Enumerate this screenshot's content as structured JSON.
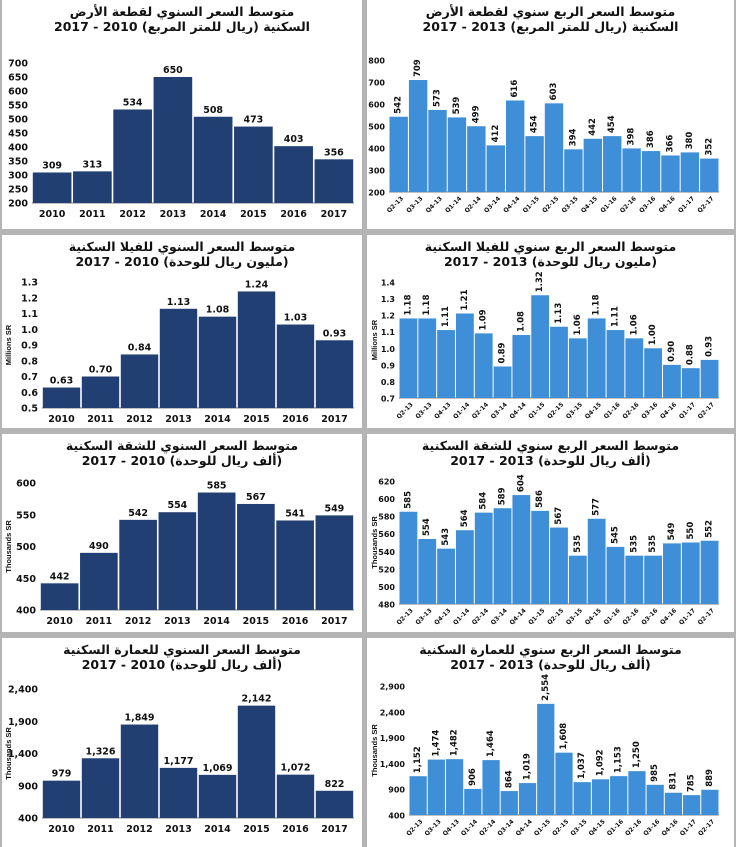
{
  "colors": {
    "annual": "#213f73",
    "quarterly": "#3e8fd8",
    "separator": "#b4b4b4"
  },
  "chart_data": [
    {
      "id": "land-annual",
      "type": "bar",
      "title": "متوسط السعر السنوي لقطعة الأرض",
      "subtitle": "السكنية (ريال للمتر المربع) 2010 - 2017",
      "ylabel": "",
      "categories": [
        "2010",
        "2011",
        "2012",
        "2013",
        "2014",
        "2015",
        "2016",
        "2017"
      ],
      "values": [
        309,
        313,
        534,
        650,
        508,
        473,
        403,
        356
      ],
      "value_labels": [
        "309",
        "313",
        "534",
        "650",
        "508",
        "473",
        "403",
        "356"
      ],
      "ylim": [
        200,
        700
      ],
      "yticks": [
        200,
        250,
        300,
        350,
        400,
        450,
        500,
        550,
        600,
        650,
        700
      ],
      "ytick_labels": [
        "200",
        "250",
        "300",
        "350",
        "400",
        "450",
        "500",
        "550",
        "600",
        "650",
        "700"
      ]
    },
    {
      "id": "land-quarterly",
      "type": "bar",
      "title": "متوسط السعر الربع سنوي لقطعة الأرض",
      "subtitle": "السكنية (ريال للمتر المربع) 2013 - 2017",
      "ylabel": "",
      "categories": [
        "Q2-13",
        "Q3-13",
        "Q4-13",
        "Q1-14",
        "Q2-14",
        "Q3-14",
        "Q4-14",
        "Q1-15",
        "Q2-15",
        "Q3-15",
        "Q4-15",
        "Q1-16",
        "Q2-16",
        "Q3-16",
        "Q4-16",
        "Q1-17",
        "Q2-17"
      ],
      "values": [
        542,
        709,
        573,
        539,
        499,
        412,
        616,
        454,
        603,
        394,
        442,
        454,
        398,
        386,
        366,
        380,
        352
      ],
      "value_labels": [
        "542",
        "709",
        "573",
        "539",
        "499",
        "412",
        "616",
        "454",
        "603",
        "394",
        "442",
        "454",
        "398",
        "386",
        "366",
        "380",
        "352"
      ],
      "ylim": [
        200,
        800
      ],
      "yticks": [
        200,
        300,
        400,
        500,
        600,
        700,
        800
      ],
      "ytick_labels": [
        "200",
        "300",
        "400",
        "500",
        "600",
        "700",
        "800"
      ]
    },
    {
      "id": "villa-annual",
      "type": "bar",
      "title": "متوسط السعر السنوي للفيلا السكنية",
      "subtitle": "(مليون ريال للوحدة) 2010 - 2017",
      "ylabel": "Millions SR",
      "categories": [
        "2010",
        "2011",
        "2012",
        "2013",
        "2014",
        "2015",
        "2016",
        "2017"
      ],
      "values": [
        0.63,
        0.7,
        0.84,
        1.13,
        1.08,
        1.24,
        1.03,
        0.93
      ],
      "value_labels": [
        "0.63",
        "0.70",
        "0.84",
        "1.13",
        "1.08",
        "1.24",
        "1.03",
        "0.93"
      ],
      "ylim": [
        0.5,
        1.3
      ],
      "yticks": [
        0.5,
        0.6,
        0.7,
        0.8,
        0.9,
        1.0,
        1.1,
        1.2,
        1.3
      ],
      "ytick_labels": [
        "0.5",
        "0.6",
        "0.7",
        "0.8",
        "0.9",
        "1.0",
        "1.1",
        "1.2",
        "1.3"
      ]
    },
    {
      "id": "villa-quarterly",
      "type": "bar",
      "title": "متوسط السعر الربع سنوي للفيلا السكنية",
      "subtitle": "(مليون ريال للوحدة) 2013 - 2017",
      "ylabel": "Millions SR",
      "categories": [
        "Q2-13",
        "Q3-13",
        "Q4-13",
        "Q1-14",
        "Q2-14",
        "Q3-14",
        "Q4-14",
        "Q1-15",
        "Q2-15",
        "Q3-15",
        "Q4-15",
        "Q1-16",
        "Q2-16",
        "Q3-16",
        "Q4-16",
        "Q1-17",
        "Q2-17"
      ],
      "values": [
        1.18,
        1.18,
        1.11,
        1.21,
        1.09,
        0.89,
        1.08,
        1.32,
        1.13,
        1.06,
        1.18,
        1.11,
        1.06,
        1.0,
        0.9,
        0.88,
        0.93
      ],
      "value_labels": [
        "1.18",
        "1.18",
        "1.11",
        "1.21",
        "1.09",
        "0.89",
        "1.08",
        "1.32",
        "1.13",
        "1.06",
        "1.18",
        "1.11",
        "1.06",
        "1.00",
        "0.90",
        "0.88",
        "0.93"
      ],
      "ylim": [
        0.7,
        1.4
      ],
      "yticks": [
        0.7,
        0.8,
        0.9,
        1.0,
        1.1,
        1.2,
        1.3,
        1.4
      ],
      "ytick_labels": [
        "0.7",
        "0.8",
        "0.9",
        "1.0",
        "1.1",
        "1.2",
        "1.3",
        "1.4"
      ]
    },
    {
      "id": "apartment-annual",
      "type": "bar",
      "title": "متوسط السعر السنوي للشقة السكنية",
      "subtitle": "(ألف ريال للوحدة)  2010 - 2017",
      "ylabel": "Thousands SR",
      "categories": [
        "2010",
        "2011",
        "2012",
        "2013",
        "2014",
        "2015",
        "2016",
        "2017"
      ],
      "values": [
        442,
        490,
        542,
        554,
        585,
        567,
        541,
        549
      ],
      "value_labels": [
        "442",
        "490",
        "542",
        "554",
        "585",
        "567",
        "541",
        "549"
      ],
      "ylim": [
        400,
        600
      ],
      "yticks": [
        400,
        450,
        500,
        550,
        600
      ],
      "ytick_labels": [
        "400",
        "450",
        "500",
        "550",
        "600"
      ]
    },
    {
      "id": "apartment-quarterly",
      "type": "bar",
      "title": "متوسط السعر الربع سنوي للشقة السكنية",
      "subtitle": "(ألف ريال للوحدة) 2013 - 2017",
      "ylabel": "Thousands SR",
      "categories": [
        "Q2-13",
        "Q3-13",
        "Q4-13",
        "Q1-14",
        "Q2-14",
        "Q3-14",
        "Q4-14",
        "Q1-15",
        "Q2-15",
        "Q3-15",
        "Q4-15",
        "Q1-16",
        "Q2-16",
        "Q3-16",
        "Q4-16",
        "Q1-17",
        "Q2-17"
      ],
      "values": [
        585,
        554,
        543,
        564,
        584,
        589,
        604,
        586,
        567,
        535,
        577,
        545,
        535,
        535,
        549,
        550,
        552
      ],
      "value_labels": [
        "585",
        "554",
        "543",
        "564",
        "584",
        "589",
        "604",
        "586",
        "567",
        "535",
        "577",
        "545",
        "535",
        "535",
        "549",
        "550",
        "552"
      ],
      "ylim": [
        480,
        620
      ],
      "yticks": [
        480,
        500,
        520,
        540,
        560,
        580,
        600,
        620
      ],
      "ytick_labels": [
        "480",
        "500",
        "520",
        "540",
        "560",
        "580",
        "600",
        "620"
      ]
    },
    {
      "id": "building-annual",
      "type": "bar",
      "title": "متوسط السعر السنوي للعمارة السكنية",
      "subtitle": "(ألف ريال للوحدة)  2010 - 2017",
      "ylabel": "Thousands SR",
      "categories": [
        "2010",
        "2011",
        "2012",
        "2013",
        "2014",
        "2015",
        "2016",
        "2017"
      ],
      "values": [
        979,
        1326,
        1849,
        1177,
        1069,
        2142,
        1072,
        822
      ],
      "value_labels": [
        "979",
        "1,326",
        "1,849",
        "1,177",
        "1,069",
        "2,142",
        "1,072",
        "822"
      ],
      "ylim": [
        400,
        2400
      ],
      "yticks": [
        400,
        900,
        1400,
        1900,
        2400
      ],
      "ytick_labels": [
        "400",
        "900",
        "1,400",
        "1,900",
        "2,400"
      ]
    },
    {
      "id": "building-quarterly",
      "type": "bar",
      "title": "متوسط السعر الربع سنوي للعمارة السكنية",
      "subtitle": "(ألف ريال للوحدة) 2013 - 2017",
      "ylabel": "Thousands SR",
      "categories": [
        "Q2-13",
        "Q3-13",
        "Q4-13",
        "Q1-14",
        "Q2-14",
        "Q3-14",
        "Q4-14",
        "Q1-15",
        "Q2-15",
        "Q3-15",
        "Q4-15",
        "Q1-16",
        "Q2-16",
        "Q3-16",
        "Q4-16",
        "Q1-17",
        "Q2-17"
      ],
      "values": [
        1152,
        1474,
        1482,
        906,
        1464,
        864,
        1019,
        2554,
        1608,
        1037,
        1092,
        1153,
        1250,
        985,
        831,
        785,
        889
      ],
      "value_labels": [
        "1,152",
        "1,474",
        "1,482",
        "906",
        "1,464",
        "864",
        "1,019",
        "2,554",
        "1,608",
        "1,037",
        "1,092",
        "1,153",
        "1,250",
        "985",
        "831",
        "785",
        "889"
      ],
      "ylim": [
        400,
        2900
      ],
      "yticks": [
        400,
        900,
        1400,
        1900,
        2400,
        2900
      ],
      "ytick_labels": [
        "400",
        "900",
        "1,400",
        "1,900",
        "2,400",
        "2,900"
      ]
    }
  ]
}
